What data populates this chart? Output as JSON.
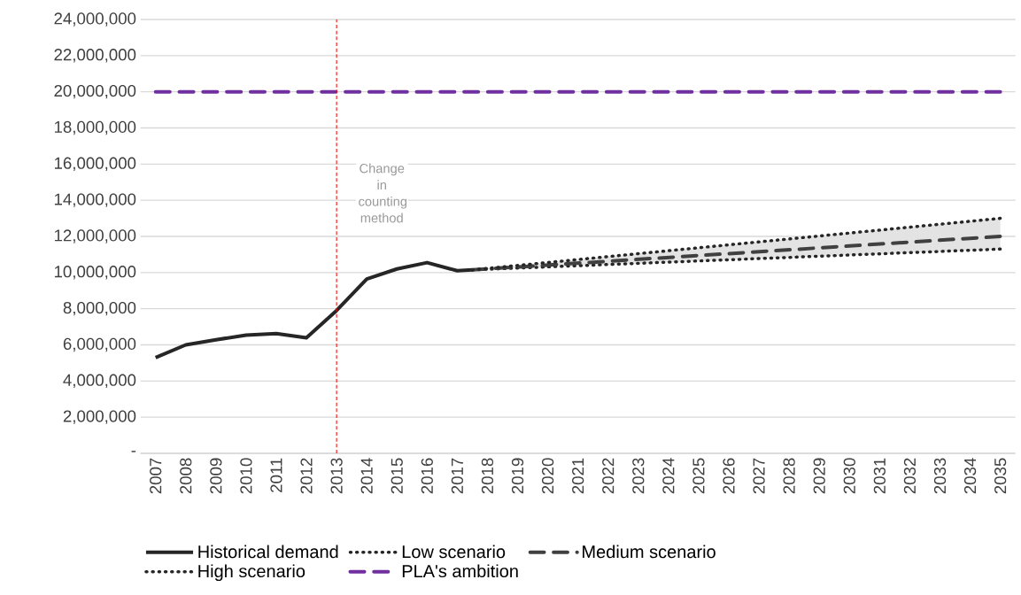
{
  "chart_data": {
    "type": "line",
    "xlim": [
      2006.5,
      2035.5
    ],
    "xticks": [
      2007,
      2008,
      2009,
      2010,
      2011,
      2012,
      2013,
      2014,
      2015,
      2016,
      2017,
      2018,
      2019,
      2020,
      2021,
      2022,
      2023,
      2024,
      2025,
      2026,
      2027,
      2028,
      2029,
      2030,
      2031,
      2032,
      2033,
      2034,
      2035
    ],
    "ylim": [
      0,
      24000000
    ],
    "yticks": [
      {
        "value": 0,
        "label": "-"
      },
      {
        "value": 2000000,
        "label": "2,000,000"
      },
      {
        "value": 4000000,
        "label": "4,000,000"
      },
      {
        "value": 6000000,
        "label": "6,000,000"
      },
      {
        "value": 8000000,
        "label": "8,000,000"
      },
      {
        "value": 10000000,
        "label": "10,000,000"
      },
      {
        "value": 12000000,
        "label": "12,000,000"
      },
      {
        "value": 14000000,
        "label": "14,000,000"
      },
      {
        "value": 16000000,
        "label": "16,000,000"
      },
      {
        "value": 18000000,
        "label": "18,000,000"
      },
      {
        "value": 20000000,
        "label": "20,000,000"
      },
      {
        "value": 22000000,
        "label": "22,000,000"
      },
      {
        "value": 24000000,
        "label": "24,000,000"
      }
    ],
    "grid": "y",
    "legend": "bottom",
    "marker": "none",
    "series": [
      {
        "name": "Historical demand",
        "color": "#262626",
        "line_style": "solid",
        "x": [
          2007,
          2008,
          2009,
          2010,
          2011,
          2012,
          2013,
          2014,
          2015,
          2016,
          2017,
          2017.5
        ],
        "values": [
          5300000,
          6000000,
          6280000,
          6540000,
          6620000,
          6390000,
          7900000,
          9640000,
          10200000,
          10550000,
          10100000,
          10150000
        ]
      },
      {
        "name": "Low scenario",
        "color": "#262626",
        "line_style": "dotted",
        "x": [
          2017.5,
          2035
        ],
        "values": [
          10150000,
          11300000
        ]
      },
      {
        "name": "Medium scenario",
        "color": "#404040",
        "line_style": "dashed",
        "x": [
          2017.5,
          2035
        ],
        "values": [
          10150000,
          12000000
        ],
        "lower": [
          10150000,
          11300000
        ],
        "upper": [
          10150000,
          13000000
        ]
      },
      {
        "name": "High scenario",
        "color": "#262626",
        "line_style": "dotted",
        "x": [
          2017.5,
          2035
        ],
        "values": [
          10150000,
          13000000
        ]
      },
      {
        "name": "PLA's ambition",
        "color": "#7030a0",
        "line_style": "dashed",
        "x": [
          2007,
          2035
        ],
        "values": [
          20000000,
          20000000
        ]
      }
    ],
    "ref_lines": [
      {
        "axis": "x",
        "value": 2013,
        "label": "Change in counting method",
        "color": "#ff0000",
        "line_style": "dashed"
      }
    ]
  }
}
